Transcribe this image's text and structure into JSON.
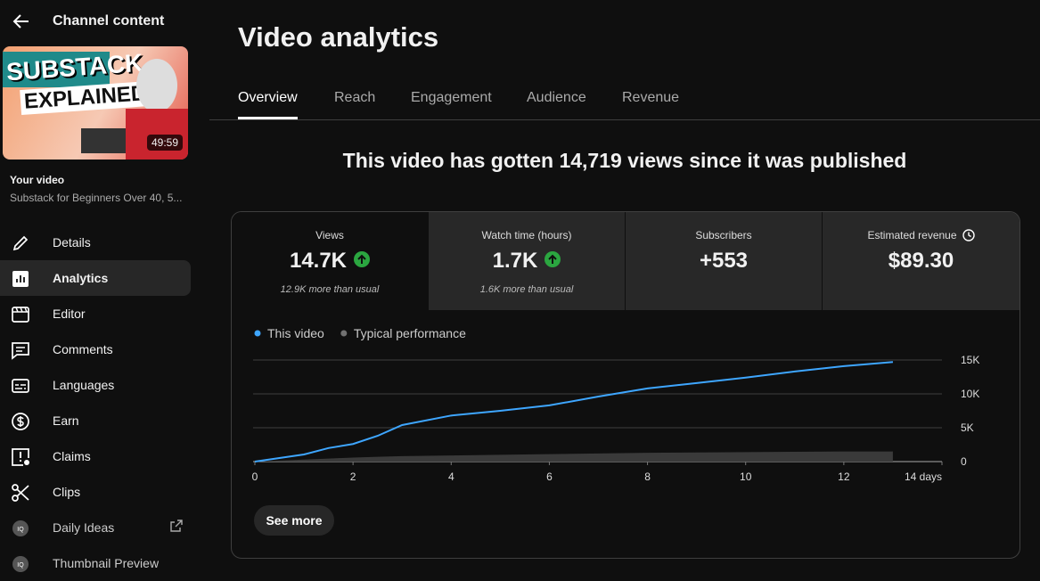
{
  "sidebar": {
    "back_title": "Channel content",
    "thumbnail": {
      "headline_1": "SUBSTACK",
      "headline_2": "EXPLAINED",
      "duration": "49:59"
    },
    "your_video_label": "Your video",
    "video_title": "Substack for Beginners Over 40, 5...",
    "nav": [
      {
        "label": "Details"
      },
      {
        "label": "Analytics",
        "active": true
      },
      {
        "label": "Editor"
      },
      {
        "label": "Comments"
      },
      {
        "label": "Languages"
      },
      {
        "label": "Earn"
      },
      {
        "label": "Claims"
      },
      {
        "label": "Clips"
      },
      {
        "label": "Daily Ideas",
        "external": true
      },
      {
        "label": "Thumbnail Preview"
      }
    ]
  },
  "header": {
    "title": "Video analytics",
    "tabs": [
      {
        "label": "Overview",
        "active": true
      },
      {
        "label": "Reach"
      },
      {
        "label": "Engagement"
      },
      {
        "label": "Audience"
      },
      {
        "label": "Revenue"
      }
    ]
  },
  "headline": "This video has gotten 14,719 views since it was published",
  "metrics": [
    {
      "label": "Views",
      "value": "14.7K",
      "trend": "up",
      "note": "12.9K more than usual",
      "selected": true
    },
    {
      "label": "Watch time (hours)",
      "value": "1.7K",
      "trend": "up",
      "note": "1.6K more than usual"
    },
    {
      "label": "Subscribers",
      "value": "+553"
    },
    {
      "label": "Estimated revenue",
      "value": "$89.30",
      "icon": "clock"
    }
  ],
  "chart_data": {
    "type": "line",
    "x": [
      0,
      1,
      1.5,
      2,
      2.5,
      3,
      4,
      5,
      6,
      7,
      8,
      9,
      10,
      11,
      12,
      13
    ],
    "series": [
      {
        "name": "This video",
        "color": "#3ea6ff",
        "values": [
          0,
          1050,
          2000,
          2600,
          3800,
          5400,
          6800,
          7500,
          8300,
          9600,
          10800,
          11600,
          12400,
          13300,
          14100,
          14700
        ]
      },
      {
        "name": "Typical performance",
        "color": "#717171",
        "fill": "#3a3a3a",
        "values": [
          0,
          300,
          450,
          600,
          700,
          800,
          900,
          1000,
          1100,
          1200,
          1300,
          1350,
          1400,
          1450,
          1500,
          1500
        ]
      }
    ],
    "xlim": [
      0,
      14
    ],
    "xticks": [
      0,
      2,
      4,
      6,
      8,
      10,
      12,
      {
        "value": 14,
        "label": "14 days"
      }
    ],
    "ylim": [
      0,
      15000
    ],
    "yticks": [
      0,
      {
        "value": 5000,
        "label": "5K"
      },
      {
        "value": 10000,
        "label": "10K"
      },
      {
        "value": 15000,
        "label": "15K"
      }
    ],
    "grid": true
  },
  "see_more": "See more"
}
